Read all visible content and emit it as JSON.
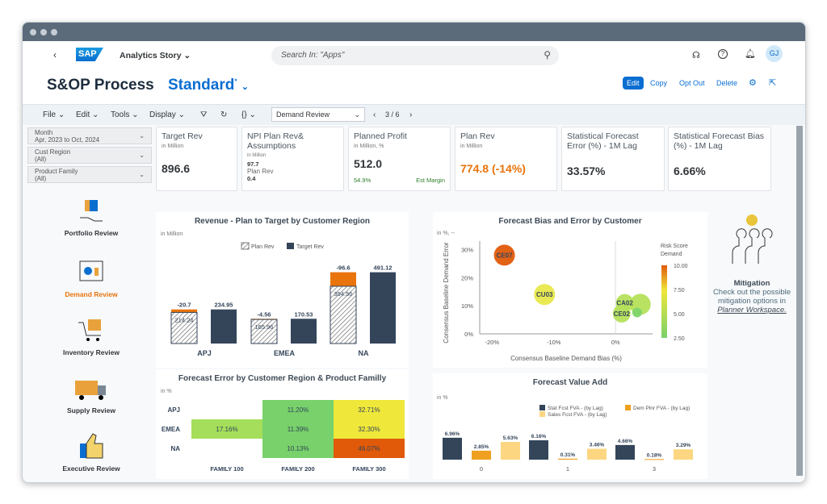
{
  "header": {
    "app_title": "Analytics Story",
    "search_placeholder": "Search In: \"Apps\"",
    "avatar": "GJ",
    "logo": "SAP"
  },
  "story": {
    "title": "S&OP Process",
    "variant": "Standard",
    "variant_mark": "*",
    "actions": [
      "Edit",
      "Copy",
      "Opt Out",
      "Delete"
    ]
  },
  "toolbar": {
    "menus": [
      "File",
      "Edit",
      "Tools",
      "Display"
    ],
    "page_select": "Demand Review",
    "page_indicator": "3 / 6"
  },
  "filters": [
    {
      "label": "Month",
      "value": "Apr, 2023 to Oct, 2024"
    },
    {
      "label": "Cust Region",
      "value": "(All)"
    },
    {
      "label": "Product Family",
      "value": "(All)"
    }
  ],
  "kpis": [
    {
      "title": "Target Rev",
      "sub": "in Million",
      "value": "896.6"
    },
    {
      "title": "NPI Plan Rev& Assumptions",
      "sub": "in Million",
      "value1": "97.7",
      "label2": "Plan Rev",
      "value2": "0.4"
    },
    {
      "title": "Planned Profit",
      "sub": "in Million, %",
      "value": "512.0",
      "margin": "54.9%",
      "margin_label": "Est Margin"
    },
    {
      "title": "Plan Rev",
      "sub": "in Million",
      "value": "774.8",
      "delta": "(-14%)"
    },
    {
      "title": "Statistical Forecast Error (%) - 1M Lag",
      "value": "33.57%"
    },
    {
      "title": "Statistical Forecast Bias (%) - 1M Lag",
      "value": "6.66%"
    }
  ],
  "nav": [
    {
      "label": "Portfolio Review",
      "active": false
    },
    {
      "label": "Demand Review",
      "active": true
    },
    {
      "label": "Inventory Review",
      "active": false
    },
    {
      "label": "Supply Review",
      "active": false
    },
    {
      "label": "Executive Review",
      "active": false
    }
  ],
  "mitigation": {
    "title": "Mitigation",
    "text": "Check out the possible mitigation options in",
    "link": "Planner Workspace."
  },
  "colors": {
    "accent": "#0a6ed1",
    "orange": "#e9730c",
    "navy": "#34455a",
    "active_nav": "#e9730c"
  },
  "chart_data": [
    {
      "type": "bar",
      "title": "Revenue - Plan to Target by Customer Region",
      "unit": "in Million",
      "categories": [
        "APJ",
        "EMEA",
        "NA"
      ],
      "series": [
        {
          "name": "Plan Rev",
          "values": [
            214.24,
            165.96,
            394.56
          ]
        },
        {
          "name": "Target Rev",
          "values": [
            234.95,
            170.53,
            491.12
          ]
        }
      ],
      "gap_labels": [
        "-20.7",
        "-4.56",
        "-96.6"
      ]
    },
    {
      "type": "heatmap",
      "title": "Forecast Error by Customer Region & Product Familly",
      "unit": "in %",
      "rows": [
        "APJ",
        "EMEA",
        "NA"
      ],
      "columns": [
        "FAMILY 100",
        "FAMILY 200",
        "FAMILY 300"
      ],
      "values": [
        [
          null,
          "11.20%",
          "32.71%"
        ],
        [
          "17.16%",
          "11.39%",
          "32.30%"
        ],
        [
          null,
          "10.13%",
          "46.07%"
        ]
      ]
    },
    {
      "type": "scatter",
      "title": "Forecast Bias and Error by Customer",
      "unit": "in %, --",
      "xlabel": "Consensus Baseline Demand Bias (%)",
      "ylabel": "Consensus Baseline Demand Error",
      "xticks": [
        "-20%",
        "-10%",
        "0%"
      ],
      "yticks": [
        "0%",
        "10%",
        "20%",
        "30%"
      ],
      "xlim": [
        -22,
        6
      ],
      "ylim": [
        0,
        33
      ],
      "legend_title": "Risk Score Demand",
      "legend_ticks": [
        "10.00",
        "7.50",
        "5.00",
        "2.50"
      ],
      "points": [
        {
          "label": "CE07",
          "x": -18,
          "y": 28,
          "risk": 10
        },
        {
          "label": "CU03",
          "x": -11.5,
          "y": 14,
          "risk": 7
        },
        {
          "label": "",
          "x": 4,
          "y": 10.5,
          "risk": 4.8
        },
        {
          "label": "CA02",
          "x": 1.5,
          "y": 11,
          "risk": 5
        },
        {
          "label": "CE02",
          "x": 1,
          "y": 7.2,
          "risk": 4.2
        },
        {
          "label": "",
          "x": 3.5,
          "y": 7.6,
          "risk": 2.8
        }
      ]
    },
    {
      "type": "bar",
      "title": "Forecast Value Add",
      "unit": "in %",
      "categories": [
        "0",
        "1",
        "3"
      ],
      "series": [
        {
          "name": "Stat Fcst FVA - (by Lag)",
          "values": [
            6.96,
            6.16,
            4.66
          ]
        },
        {
          "name": "Dem Plnr FVA - (by Lag)",
          "values": [
            2.85,
            0.31,
            0.18
          ]
        },
        {
          "name": "Sales Fcst FVA - (by Lag)",
          "values": [
            5.63,
            3.46,
            3.29
          ]
        }
      ]
    }
  ]
}
